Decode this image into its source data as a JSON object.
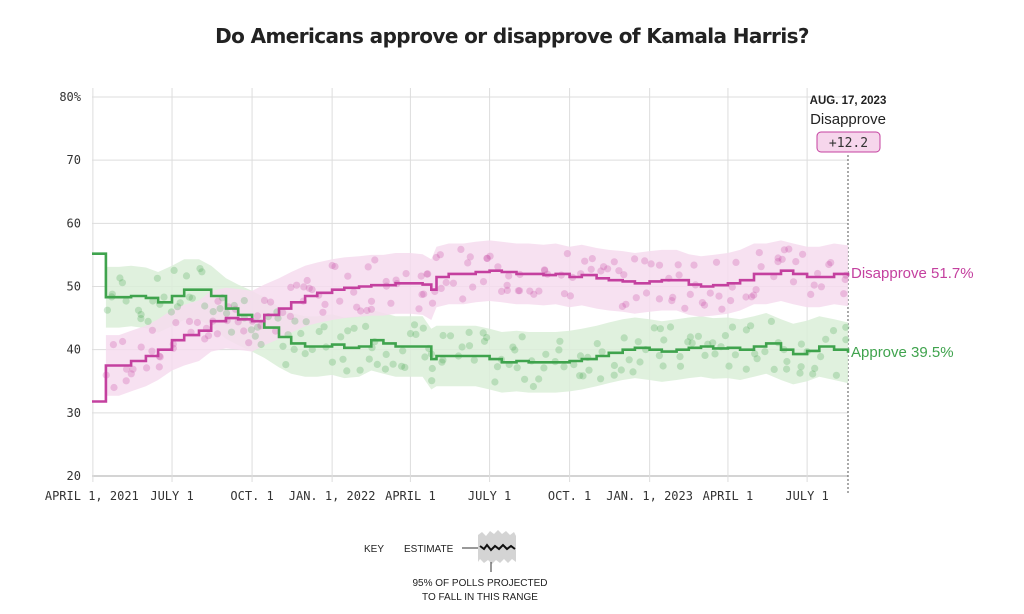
{
  "title": "Do Americans approve or disapprove of Kamala Harris?",
  "colors": {
    "approve": "#3fa34d",
    "disapprove": "#c4409f",
    "approve_band": "#dbefd8",
    "disapprove_band": "#f6dcee",
    "grid": "#dddddd"
  },
  "chart_data": {
    "type": "line",
    "title": "Do Americans approve or disapprove of Kamala Harris?",
    "ylabel": "",
    "xlabel": "",
    "ylim": [
      20,
      80
    ],
    "xlim": [
      "2021-03-31",
      "2023-08-17"
    ],
    "y_ticks": [
      "20",
      "30",
      "40",
      "50",
      "60",
      "70",
      "80%"
    ],
    "y_tick_values": [
      20,
      30,
      40,
      50,
      60,
      70,
      80
    ],
    "x_ticks": [
      {
        "label": "APRIL 1, 2021",
        "date": "2021-04-01"
      },
      {
        "label": "JULY 1",
        "date": "2021-07-01"
      },
      {
        "label": "OCT. 1",
        "date": "2021-10-01"
      },
      {
        "label": "JAN. 1, 2022",
        "date": "2022-01-01"
      },
      {
        "label": "APRIL 1",
        "date": "2022-04-01"
      },
      {
        "label": "JULY 1",
        "date": "2022-07-01"
      },
      {
        "label": "OCT. 1",
        "date": "2022-10-01"
      },
      {
        "label": "JAN. 1, 2023",
        "date": "2023-01-01"
      },
      {
        "label": "APRIL 1",
        "date": "2023-04-01"
      },
      {
        "label": "JULY 1",
        "date": "2023-07-01"
      }
    ],
    "grid": true,
    "band_description": "95% of polls projected to fall in this range",
    "series": [
      {
        "name": "Disapprove",
        "color": "#c4409f",
        "final_label": "Disapprove 51.7%",
        "points": [
          [
            "2021-03-31",
            31.8
          ],
          [
            "2021-04-15",
            31.8
          ],
          [
            "2021-04-16",
            37.5
          ],
          [
            "2021-05-01",
            37.5
          ],
          [
            "2021-05-15",
            38.2
          ],
          [
            "2021-06-01",
            39.0
          ],
          [
            "2021-06-15",
            40.0
          ],
          [
            "2021-07-01",
            41.5
          ],
          [
            "2021-07-15",
            42.3
          ],
          [
            "2021-08-01",
            43.0
          ],
          [
            "2021-08-15",
            44.5
          ],
          [
            "2021-09-01",
            45.0
          ],
          [
            "2021-09-15",
            44.8
          ],
          [
            "2021-10-01",
            44.5
          ],
          [
            "2021-10-15",
            45.5
          ],
          [
            "2021-11-01",
            46.5
          ],
          [
            "2021-11-15",
            47.5
          ],
          [
            "2021-12-01",
            48.5
          ],
          [
            "2021-12-15",
            49.0
          ],
          [
            "2022-01-01",
            49.5
          ],
          [
            "2022-01-15",
            49.8
          ],
          [
            "2022-02-01",
            50.0
          ],
          [
            "2022-02-15",
            50.2
          ],
          [
            "2022-03-01",
            50.2
          ],
          [
            "2022-03-15",
            50.5
          ],
          [
            "2022-04-01",
            50.5
          ],
          [
            "2022-04-15",
            50.3
          ],
          [
            "2022-04-25",
            49.5
          ],
          [
            "2022-05-01",
            51.5
          ],
          [
            "2022-05-15",
            52.0
          ],
          [
            "2022-06-01",
            52.0
          ],
          [
            "2022-06-15",
            52.3
          ],
          [
            "2022-07-01",
            52.5
          ],
          [
            "2022-07-15",
            52.3
          ],
          [
            "2022-08-01",
            52.0
          ],
          [
            "2022-08-15",
            52.0
          ],
          [
            "2022-09-01",
            51.8
          ],
          [
            "2022-09-15",
            52.0
          ],
          [
            "2022-10-01",
            51.5
          ],
          [
            "2022-10-15",
            51.8
          ],
          [
            "2022-11-01",
            51.3
          ],
          [
            "2022-11-15",
            51.0
          ],
          [
            "2022-12-01",
            50.8
          ],
          [
            "2022-12-15",
            50.5
          ],
          [
            "2023-01-01",
            50.8
          ],
          [
            "2023-01-15",
            51.0
          ],
          [
            "2023-02-01",
            51.0
          ],
          [
            "2023-02-15",
            50.3
          ],
          [
            "2023-03-01",
            50.0
          ],
          [
            "2023-03-15",
            50.2
          ],
          [
            "2023-04-01",
            50.5
          ],
          [
            "2023-04-15",
            51.0
          ],
          [
            "2023-05-01",
            52.0
          ],
          [
            "2023-05-15",
            52.0
          ],
          [
            "2023-06-01",
            52.5
          ],
          [
            "2023-06-15",
            52.0
          ],
          [
            "2023-07-01",
            51.5
          ],
          [
            "2023-07-15",
            51.5
          ],
          [
            "2023-08-01",
            52.0
          ],
          [
            "2023-08-17",
            51.7
          ]
        ]
      },
      {
        "name": "Approve",
        "color": "#3fa34d",
        "final_label": "Approve 39.5%",
        "points": [
          [
            "2021-03-31",
            55.2
          ],
          [
            "2021-04-15",
            55.2
          ],
          [
            "2021-04-16",
            48.3
          ],
          [
            "2021-05-01",
            48.3
          ],
          [
            "2021-05-15",
            48.5
          ],
          [
            "2021-06-01",
            48.2
          ],
          [
            "2021-06-15",
            47.5
          ],
          [
            "2021-07-01",
            48.5
          ],
          [
            "2021-07-15",
            49.5
          ],
          [
            "2021-08-01",
            49.5
          ],
          [
            "2021-08-15",
            48.5
          ],
          [
            "2021-09-01",
            46.5
          ],
          [
            "2021-09-15",
            45.5
          ],
          [
            "2021-10-01",
            44.5
          ],
          [
            "2021-10-15",
            43.5
          ],
          [
            "2021-11-01",
            42.0
          ],
          [
            "2021-11-15",
            41.0
          ],
          [
            "2021-12-01",
            40.5
          ],
          [
            "2021-12-15",
            40.5
          ],
          [
            "2022-01-01",
            40.8
          ],
          [
            "2022-01-15",
            40.3
          ],
          [
            "2022-02-01",
            40.5
          ],
          [
            "2022-02-15",
            41.5
          ],
          [
            "2022-03-01",
            41.0
          ],
          [
            "2022-03-15",
            40.5
          ],
          [
            "2022-04-01",
            40.5
          ],
          [
            "2022-04-15",
            40.5
          ],
          [
            "2022-04-25",
            38.5
          ],
          [
            "2022-05-01",
            39.0
          ],
          [
            "2022-05-15",
            39.0
          ],
          [
            "2022-06-01",
            39.0
          ],
          [
            "2022-06-15",
            39.0
          ],
          [
            "2022-07-01",
            38.5
          ],
          [
            "2022-07-15",
            38.0
          ],
          [
            "2022-08-01",
            38.2
          ],
          [
            "2022-08-15",
            38.0
          ],
          [
            "2022-09-01",
            38.0
          ],
          [
            "2022-09-15",
            38.0
          ],
          [
            "2022-10-01",
            38.2
          ],
          [
            "2022-10-15",
            38.5
          ],
          [
            "2022-11-01",
            39.0
          ],
          [
            "2022-11-15",
            39.5
          ],
          [
            "2022-12-01",
            40.0
          ],
          [
            "2022-12-15",
            40.3
          ],
          [
            "2023-01-01",
            40.0
          ],
          [
            "2023-01-15",
            39.7
          ],
          [
            "2023-02-01",
            40.0
          ],
          [
            "2023-02-15",
            40.3
          ],
          [
            "2023-03-01",
            40.5
          ],
          [
            "2023-03-15",
            40.2
          ],
          [
            "2023-04-01",
            40.3
          ],
          [
            "2023-04-15",
            40.0
          ],
          [
            "2023-05-01",
            40.5
          ],
          [
            "2023-05-15",
            41.0
          ],
          [
            "2023-06-01",
            40.0
          ],
          [
            "2023-06-15",
            39.3
          ],
          [
            "2023-07-01",
            39.8
          ],
          [
            "2023-07-15",
            40.5
          ],
          [
            "2023-08-01",
            40.0
          ],
          [
            "2023-08-17",
            39.5
          ]
        ]
      }
    ]
  },
  "annotation": {
    "date": "AUG. 17, 2023",
    "series": "Disapprove",
    "margin": "+12.2"
  },
  "key": {
    "key_label": "KEY",
    "estimate_label": "ESTIMATE",
    "range_line1": "95% OF POLLS PROJECTED",
    "range_line2": "TO FALL IN THIS RANGE"
  }
}
